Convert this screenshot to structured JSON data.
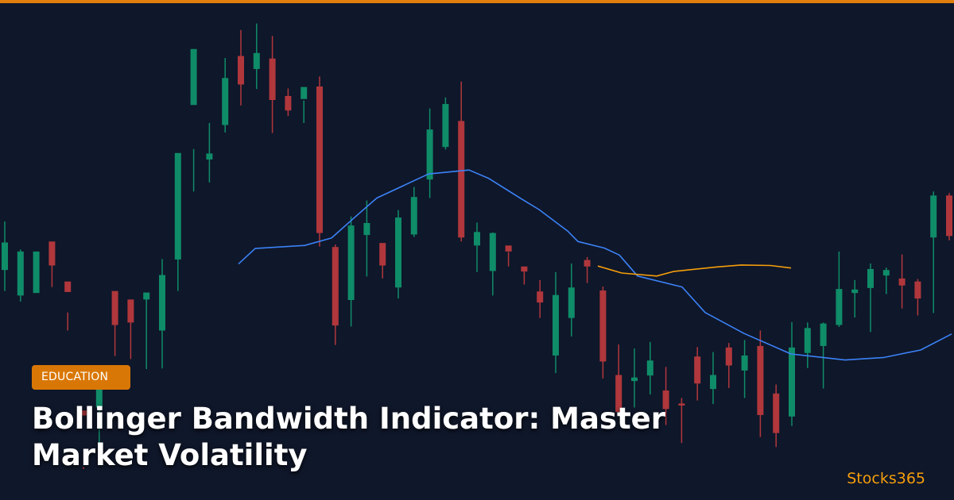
{
  "colors": {
    "background": "#0f172a",
    "accent": "#e07f0c",
    "bullish": "#10b981",
    "bearish": "#ef4444",
    "middle_band": "#3b82f6",
    "bandwidth_line": "#f59e0b"
  },
  "badge": {
    "label": "EDUCATION"
  },
  "headline": {
    "text": "Bollinger Bandwidth Indicator: Master Market Volatility"
  },
  "brand": {
    "name": "Stocks365"
  },
  "chart_data": {
    "type": "candlestick",
    "grid": false,
    "axes_shown": false,
    "candles": [
      [
        0.443,
        0.54,
        0.485,
        0.582,
        "up"
      ],
      [
        0.499,
        0.591,
        0.503,
        0.603,
        "up"
      ],
      [
        0.508,
        0.586,
        0.503,
        0.585,
        "up"
      ],
      [
        0.574,
        0.483,
        0.531,
        0.521,
        "dn"
      ],
      [
        0.625,
        0.563,
        0.584,
        0.661,
        "dn"
      ],
      [
        0.938,
        0.821,
        0.831,
        0.934,
        "dn"
      ],
      [
        0.891,
        0.767,
        0.815,
        0.792,
        "up"
      ],
      [
        0.649,
        0.582,
        0.65,
        0.712,
        "dn"
      ],
      [
        0.626,
        0.599,
        0.645,
        0.718,
        "dn"
      ],
      [
        0.594,
        0.585,
        0.599,
        0.738,
        "up"
      ],
      [
        0.518,
        0.55,
        0.661,
        0.737,
        "up"
      ],
      [
        0.451,
        0.306,
        0.519,
        0.582,
        "up"
      ],
      [
        0.298,
        0.098,
        0.21,
        0.383,
        "up"
      ],
      [
        0.246,
        0.319,
        0.307,
        0.365,
        "up"
      ],
      [
        0.116,
        0.156,
        0.25,
        0.265,
        "up"
      ],
      [
        0.06,
        0.112,
        0.169,
        0.211,
        "dn"
      ],
      [
        0.047,
        0.106,
        0.138,
        0.178,
        "up"
      ],
      [
        0.072,
        0.117,
        0.2,
        0.266,
        "dn"
      ],
      [
        0.177,
        0.192,
        0.221,
        0.232,
        "dn"
      ],
      [
        0.201,
        0.174,
        0.198,
        0.246,
        "up"
      ],
      [
        0.153,
        0.173,
        0.466,
        0.493,
        "dn"
      ],
      [
        0.489,
        0.494,
        0.651,
        0.69,
        "dn"
      ],
      [
        0.433,
        0.451,
        0.6,
        0.653,
        "up"
      ],
      [
        0.401,
        0.446,
        0.47,
        0.553,
        "up"
      ],
      [
        0.507,
        0.486,
        0.531,
        0.557,
        "dn"
      ],
      [
        0.42,
        0.435,
        0.575,
        0.597,
        "up"
      ],
      [
        0.374,
        0.394,
        0.469,
        0.474,
        "up"
      ],
      [
        0.217,
        0.259,
        0.359,
        0.396,
        "up"
      ],
      [
        0.195,
        0.208,
        0.294,
        0.299,
        "up"
      ],
      [
        0.163,
        0.242,
        0.475,
        0.483,
        "dn"
      ],
      [
        0.445,
        0.491,
        0.464,
        0.544,
        "up"
      ],
      [
        0.465,
        0.466,
        0.542,
        0.591,
        "up"
      ],
      [
        0.504,
        0.491,
        0.503,
        0.533,
        "dn"
      ],
      [
        0.537,
        0.533,
        0.543,
        0.569,
        "dn"
      ],
      [
        0.56,
        0.583,
        0.605,
        0.636,
        "dn"
      ],
      [
        0.544,
        0.59,
        0.711,
        0.746,
        "up"
      ],
      [
        0.527,
        0.575,
        0.636,
        0.673,
        "up"
      ],
      [
        0.514,
        0.52,
        0.533,
        0.566,
        "dn"
      ],
      [
        0.573,
        0.581,
        0.723,
        0.757,
        "dn"
      ],
      [
        0.689,
        0.75,
        0.824,
        0.815,
        "dn"
      ],
      [
        0.697,
        0.755,
        0.762,
        0.815,
        "up"
      ],
      [
        0.684,
        0.721,
        0.751,
        0.789,
        "up"
      ],
      [
        0.734,
        0.781,
        0.818,
        0.85,
        "dn"
      ],
      [
        0.796,
        0.807,
        0.811,
        0.886,
        "dn"
      ],
      [
        0.694,
        0.713,
        0.767,
        0.801,
        "dn"
      ],
      [
        0.704,
        0.75,
        0.778,
        0.808,
        "up"
      ],
      [
        0.686,
        0.695,
        0.731,
        0.776,
        "dn"
      ],
      [
        0.68,
        0.711,
        0.741,
        0.796,
        "up"
      ],
      [
        0.661,
        0.692,
        0.83,
        0.874,
        "dn"
      ],
      [
        0.769,
        0.787,
        0.866,
        0.894,
        "dn"
      ],
      [
        0.644,
        0.695,
        0.833,
        0.852,
        "up"
      ],
      [
        0.645,
        0.656,
        0.706,
        0.736,
        "up"
      ],
      [
        0.645,
        0.647,
        0.692,
        0.777,
        "up"
      ],
      [
        0.503,
        0.578,
        0.65,
        0.654,
        "up"
      ],
      [
        0.56,
        0.579,
        0.586,
        0.635,
        "up"
      ],
      [
        0.527,
        0.538,
        0.576,
        0.664,
        "up"
      ],
      [
        0.535,
        0.54,
        0.551,
        0.588,
        "up"
      ],
      [
        0.509,
        0.557,
        0.571,
        0.617,
        "dn"
      ],
      [
        0.558,
        0.563,
        0.597,
        0.631,
        "dn"
      ],
      [
        0.383,
        0.391,
        0.475,
        0.626,
        "up"
      ],
      [
        0.386,
        0.391,
        0.472,
        0.481,
        "dn"
      ]
    ],
    "bb_middle": [
      [
        0.3,
        0.528
      ],
      [
        0.321,
        0.497
      ],
      [
        0.383,
        0.491
      ],
      [
        0.417,
        0.476
      ],
      [
        0.448,
        0.432
      ],
      [
        0.474,
        0.396
      ],
      [
        0.539,
        0.348
      ],
      [
        0.59,
        0.34
      ],
      [
        0.615,
        0.357
      ],
      [
        0.655,
        0.397
      ],
      [
        0.678,
        0.419
      ],
      [
        0.714,
        0.462
      ],
      [
        0.727,
        0.483
      ],
      [
        0.76,
        0.496
      ],
      [
        0.779,
        0.51
      ],
      [
        0.802,
        0.552
      ],
      [
        0.858,
        0.574
      ],
      [
        0.887,
        0.625
      ],
      [
        0.936,
        0.667
      ],
      [
        0.995,
        0.708
      ],
      [
        1.063,
        0.72
      ],
      [
        1.112,
        0.715
      ],
      [
        1.158,
        0.7
      ],
      [
        1.197,
        0.668
      ]
    ],
    "bandwidth": [
      [
        0.752,
        0.532
      ],
      [
        0.782,
        0.546
      ],
      [
        0.826,
        0.552
      ],
      [
        0.847,
        0.543
      ],
      [
        0.901,
        0.534
      ],
      [
        0.932,
        0.53
      ],
      [
        0.969,
        0.531
      ],
      [
        0.995,
        0.536
      ]
    ]
  }
}
